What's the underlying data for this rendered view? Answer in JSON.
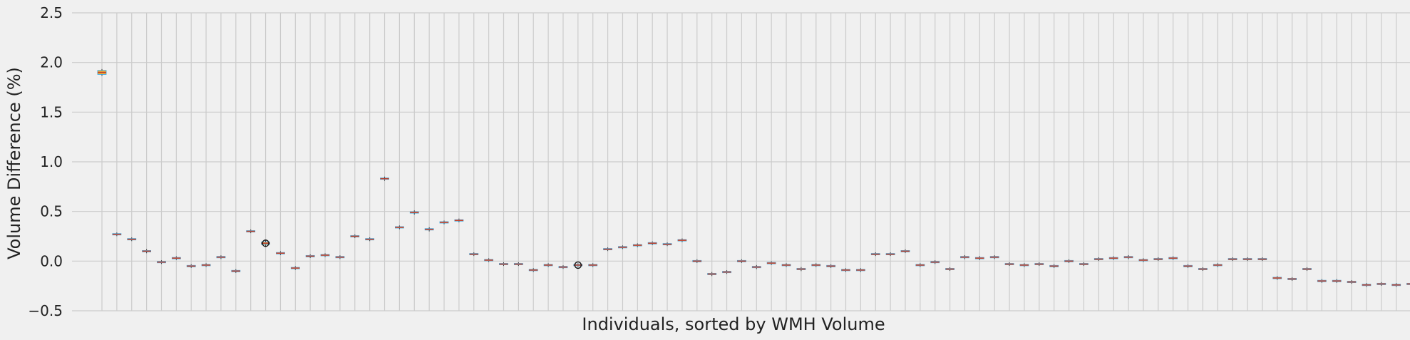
{
  "chart_data": {
    "type": "box",
    "title": "",
    "xlabel": "Individuals, sorted by WMH Volume",
    "ylabel": "Volume Difference (%)",
    "ylim": [
      -0.5,
      2.5
    ],
    "yticks": [
      "−0.5",
      "0.0",
      "0.5",
      "1.0",
      "1.5",
      "2.0",
      "2.5"
    ],
    "ytick_values": [
      -0.5,
      0.0,
      0.5,
      1.0,
      1.5,
      2.0,
      2.5
    ],
    "grid": true,
    "xticks_visible": false,
    "n_individuals": 89,
    "values": [
      1.9,
      0.27,
      0.22,
      0.1,
      -0.01,
      0.03,
      -0.05,
      -0.04,
      0.04,
      -0.1,
      0.3,
      0.18,
      0.08,
      -0.07,
      0.05,
      0.06,
      0.04,
      0.25,
      0.22,
      0.83,
      0.34,
      0.49,
      0.32,
      0.39,
      0.41,
      0.07,
      0.01,
      -0.03,
      -0.03,
      -0.09,
      -0.04,
      -0.06,
      -0.04,
      -0.04,
      0.12,
      0.14,
      0.16,
      0.18,
      0.17,
      0.21,
      0.0,
      -0.13,
      -0.11,
      0.0,
      -0.06,
      -0.02,
      -0.04,
      -0.08,
      -0.04,
      -0.05,
      -0.09,
      -0.09,
      0.07,
      0.07,
      0.1,
      -0.04,
      -0.01,
      -0.08,
      0.04,
      0.03,
      0.04,
      -0.03,
      -0.04,
      -0.03,
      -0.05,
      0.0,
      -0.03,
      0.02,
      0.03,
      0.04,
      0.01,
      0.02,
      0.03,
      -0.05,
      -0.08,
      -0.04,
      0.02,
      0.02,
      0.02,
      -0.17,
      -0.18,
      -0.08,
      -0.2,
      -0.2,
      -0.21,
      -0.24,
      -0.23,
      -0.24,
      -0.23
    ],
    "box_half_heights": [
      0.02,
      0.004,
      0.004,
      0.006,
      0.004,
      0.004,
      0.004,
      0.004,
      0.004,
      0.004,
      0.004,
      0.012,
      0.004,
      0.004,
      0.004,
      0.004,
      0.004,
      0.004,
      0.004,
      0.006,
      0.004,
      0.006,
      0.006,
      0.004,
      0.004,
      0.004,
      0.004,
      0.004,
      0.004,
      0.004,
      0.004,
      0.004,
      0.004,
      0.004,
      0.004,
      0.004,
      0.004,
      0.004,
      0.004,
      0.004,
      0.004,
      0.006,
      0.004,
      0.004,
      0.006,
      0.004,
      0.004,
      0.006,
      0.004,
      0.004,
      0.004,
      0.004,
      0.004,
      0.004,
      0.004,
      0.004,
      0.004,
      0.004,
      0.006,
      0.006,
      0.004,
      0.004,
      0.004,
      0.004,
      0.004,
      0.004,
      0.004,
      0.004,
      0.004,
      0.006,
      0.004,
      0.004,
      0.004,
      0.004,
      0.004,
      0.004,
      0.004,
      0.004,
      0.004,
      0.004,
      0.004,
      0.004,
      0.004,
      0.004,
      0.004,
      0.004,
      0.004,
      0.004,
      0.004
    ],
    "outliers": [
      {
        "index": 11,
        "value": 0.18
      },
      {
        "index": 32,
        "value": -0.04
      }
    ],
    "colors": {
      "background": "#f0f0f0",
      "grid": "#cbcbcb",
      "box_fill": "#e5ae38",
      "box_edge": "#30a2da",
      "median": "#fc4f30",
      "outlier_edge": "#111111"
    }
  }
}
